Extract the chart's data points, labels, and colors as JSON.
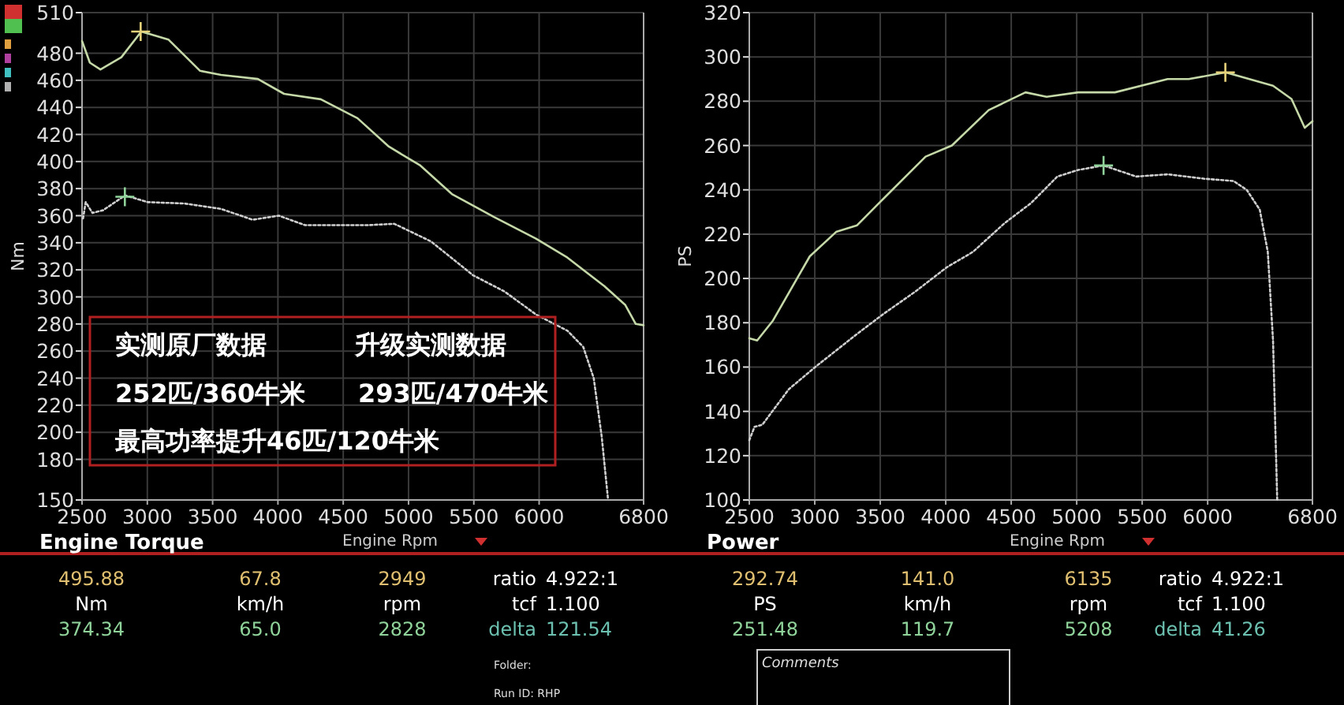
{
  "chart_data": [
    {
      "type": "line",
      "title": "Engine Torque",
      "xlabel": "Engine Rpm",
      "ylabel": "Nm",
      "xlim": [
        2500,
        6800
      ],
      "ylim": [
        150,
        510
      ],
      "xticks": [
        2500,
        3000,
        3500,
        4000,
        4500,
        5000,
        5500,
        6000,
        6800
      ],
      "yticks": [
        150,
        180,
        200,
        220,
        240,
        260,
        280,
        300,
        320,
        340,
        360,
        380,
        400,
        420,
        440,
        460,
        480,
        510
      ],
      "grid": true,
      "annotations": [
        "实测原厂数据",
        "升级实测数据",
        "252匹/360牛米",
        "293匹/470牛米",
        "最高功率提升46匹/120牛米",
        "495.88",
        "67.8",
        "2949",
        "ratio",
        "4.922:1",
        "Nm",
        "km/h",
        "rpm",
        "tcf",
        "1.100",
        "374.34",
        "65.0",
        "2828",
        "delta",
        "121.54",
        "Folder:",
        "Run ID: RHP"
      ],
      "series": [
        {
          "color": "#c5d9a8",
          "line_style": "solid",
          "x": [
            2500,
            2560,
            2641,
            2801,
            2954,
            3163,
            3404,
            3565,
            3846,
            4047,
            4328,
            4609,
            4850,
            5091,
            5332,
            5654,
            5976,
            6217,
            6499,
            6660,
            6740,
            6800
          ],
          "values": [
            489,
            473,
            468,
            477,
            496,
            490,
            467,
            464,
            461,
            450,
            446,
            432,
            411,
            397,
            376,
            359,
            343,
            329,
            308,
            294,
            280,
            279
          ]
        },
        {
          "color": "#cfcfcf",
          "line_style": "dotted",
          "x": [
            2508,
            2528,
            2580,
            2661,
            2830,
            3003,
            3284,
            3565,
            3806,
            4007,
            4208,
            4690,
            4891,
            5172,
            5494,
            5735,
            5976,
            6217,
            6338,
            6418,
            6479,
            6527
          ],
          "values": [
            358,
            370,
            362,
            364,
            375,
            370,
            369,
            365,
            357,
            360,
            353,
            353,
            354,
            341,
            316,
            304,
            287,
            275,
            263,
            240,
            197,
            151
          ]
        },
        {
          "type": "scatter",
          "marker": "cross",
          "x": [
            2949,
            2828
          ],
          "values": [
            496,
            374
          ],
          "colors": [
            "#e6d27a",
            "#8fd39a"
          ]
        }
      ]
    },
    {
      "type": "line",
      "title": "Power",
      "xlabel": "Engine Rpm",
      "ylabel": "PS",
      "xlim": [
        2500,
        6800
      ],
      "ylim": [
        100,
        320
      ],
      "xticks": [
        2500,
        3000,
        3500,
        4000,
        4500,
        5000,
        5500,
        6000,
        6800
      ],
      "yticks": [
        100,
        120,
        140,
        160,
        180,
        200,
        220,
        240,
        260,
        280,
        300,
        320
      ],
      "grid": true,
      "annotations": [
        "292.74",
        "141.0",
        "6135",
        "ratio",
        "4.922:1",
        "PS",
        "km/h",
        "rpm",
        "tcf",
        "1.100",
        "251.48",
        "119.7",
        "5208",
        "delta",
        "41.26",
        "Comments"
      ],
      "series": [
        {
          "color": "#c5d9a8",
          "line_style": "solid",
          "x": [
            2500,
            2560,
            2681,
            2962,
            3163,
            3323,
            3524,
            3846,
            4047,
            4328,
            4609,
            4770,
            5011,
            5292,
            5694,
            5855,
            6137,
            6499,
            6640,
            6741,
            6800
          ],
          "values": [
            173,
            172,
            181,
            210,
            221,
            224,
            236,
            255,
            260,
            276,
            284,
            282,
            284,
            284,
            290,
            290,
            293,
            287,
            281,
            268,
            271
          ]
        },
        {
          "color": "#cfcfcf",
          "line_style": "dotted",
          "x": [
            2500,
            2540,
            2600,
            2802,
            3003,
            3324,
            3525,
            3766,
            4007,
            4208,
            4450,
            4651,
            4852,
            5012,
            5205,
            5454,
            5695,
            5976,
            6197,
            6298,
            6398,
            6459,
            6499,
            6531
          ],
          "values": [
            127,
            133,
            134,
            150,
            160,
            175,
            184,
            194,
            205,
            212,
            225,
            234,
            246,
            249,
            251,
            246,
            247,
            245,
            244,
            240,
            231,
            212,
            172,
            100
          ]
        },
        {
          "type": "scatter",
          "marker": "cross",
          "x": [
            6135,
            5205
          ],
          "values": [
            293,
            251
          ],
          "colors": [
            "#e6d27a",
            "#8fd39a"
          ]
        }
      ]
    }
  ]
}
